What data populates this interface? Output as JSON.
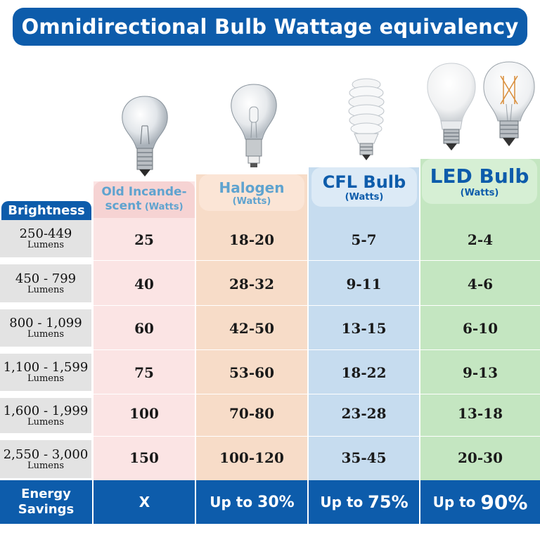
{
  "title": "Omnidirectional Bulb Wattage equivalency",
  "brightness_label": "Brightness",
  "columns": [
    {
      "name_line1": "Old Incande-",
      "name_line2": "scent",
      "unit": "(Watts)",
      "bg": "#fbe4e4",
      "head": "#f6d3d3"
    },
    {
      "name": "Halogen",
      "unit": "(Watts)",
      "bg": "#f7dcc8",
      "head": "#fbe5d6"
    },
    {
      "name": "CFL Bulb",
      "unit": "(Watts)",
      "bg": "#c6dcef",
      "head": "#dceaf6"
    },
    {
      "name": "LED Bulb",
      "unit": "(Watts)",
      "bg": "#c4e6c1",
      "head": "#d6efd4"
    }
  ],
  "rows": [
    {
      "range": "250-449",
      "unit": "Lumens",
      "values": [
        "25",
        "18-20",
        "5-7",
        "2-4"
      ]
    },
    {
      "range": "450 - 799",
      "unit": "Lumens",
      "values": [
        "40",
        "28-32",
        "9-11",
        "4-6"
      ]
    },
    {
      "range": "800 - 1,099",
      "unit": "Lumens",
      "values": [
        "60",
        "42-50",
        "13-15",
        "6-10"
      ]
    },
    {
      "range": "1,100 - 1,599",
      "unit": "Lumens",
      "values": [
        "75",
        "53-60",
        "18-22",
        "9-13"
      ]
    },
    {
      "range": "1,600 - 1,999",
      "unit": "Lumens",
      "values": [
        "100",
        "70-80",
        "23-28",
        "13-18"
      ]
    },
    {
      "range": "2,550 - 3,000",
      "unit": "Lumens",
      "values": [
        "150",
        "100-120",
        "35-45",
        "20-30"
      ]
    }
  ],
  "energy": {
    "label_line1": "Energy",
    "label_line2": "Savings",
    "values": [
      {
        "prefix": "X",
        "pct": ""
      },
      {
        "prefix": "Up to ",
        "pct": "30%"
      },
      {
        "prefix": "Up to ",
        "pct": "75%"
      },
      {
        "prefix": "Up to ",
        "pct": "90%"
      }
    ]
  },
  "colors": {
    "brand_blue": "#0d5cab",
    "label_gray": "#e3e3e3"
  }
}
